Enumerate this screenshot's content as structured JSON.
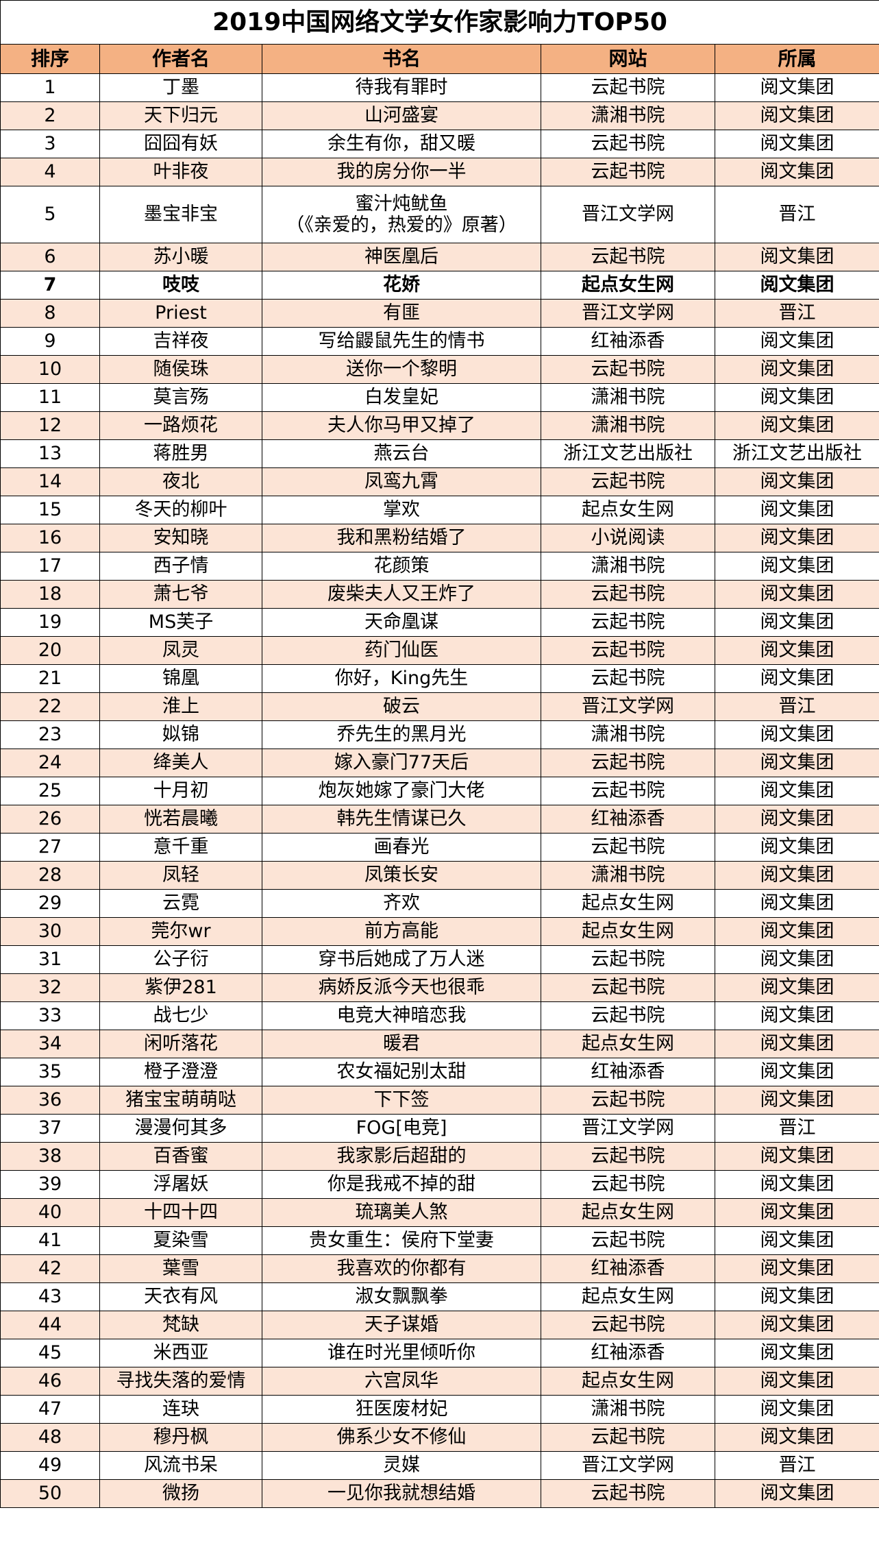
{
  "title": "2019中国网络文学女作家影响力TOP50",
  "columns": [
    "排序",
    "作者名",
    "书名",
    "网站",
    "所属"
  ],
  "colors": {
    "header_bg": "#F4B183",
    "alt_row_bg": "#FCE4D6"
  },
  "rows": [
    {
      "rank": "1",
      "author": "丁墨",
      "book": "待我有罪时",
      "site": "云起书院",
      "group": "阅文集团"
    },
    {
      "rank": "2",
      "author": "天下归元",
      "book": "山河盛宴",
      "site": "潇湘书院",
      "group": "阅文集团"
    },
    {
      "rank": "3",
      "author": "囧囧有妖",
      "book": "余生有你，甜又暖",
      "site": "云起书院",
      "group": "阅文集团"
    },
    {
      "rank": "4",
      "author": "叶非夜",
      "book": "我的房分你一半",
      "site": "云起书院",
      "group": "阅文集团"
    },
    {
      "rank": "5",
      "author": "墨宝非宝",
      "book": "蜜汁炖鱿鱼",
      "book_note": "（《亲爱的，热爱的》原著）",
      "site": "晋江文学网",
      "group": "晋江"
    },
    {
      "rank": "6",
      "author": "苏小暖",
      "book": "神医凰后",
      "site": "云起书院",
      "group": "阅文集团"
    },
    {
      "rank": "7",
      "author": "吱吱",
      "book": "花娇",
      "site": "起点女生网",
      "group": "阅文集团",
      "bold": true
    },
    {
      "rank": "8",
      "author": "Priest",
      "book": "有匪",
      "site": "晋江文学网",
      "group": "晋江"
    },
    {
      "rank": "9",
      "author": "吉祥夜",
      "book": "写给鼹鼠先生的情书",
      "site": "红袖添香",
      "group": "阅文集团"
    },
    {
      "rank": "10",
      "author": "随侯珠",
      "book": "送你一个黎明",
      "site": "云起书院",
      "group": "阅文集团"
    },
    {
      "rank": "11",
      "author": "莫言殇",
      "book": "白发皇妃",
      "site": "潇湘书院",
      "group": "阅文集团"
    },
    {
      "rank": "12",
      "author": "一路烦花",
      "book": "夫人你马甲又掉了",
      "site": "潇湘书院",
      "group": "阅文集团"
    },
    {
      "rank": "13",
      "author": "蒋胜男",
      "book": "燕云台",
      "site": "浙江文艺出版社",
      "group": "浙江文艺出版社"
    },
    {
      "rank": "14",
      "author": "夜北",
      "book": "凤鸾九霄",
      "site": "云起书院",
      "group": "阅文集团"
    },
    {
      "rank": "15",
      "author": "冬天的柳叶",
      "book": "掌欢",
      "site": "起点女生网",
      "group": "阅文集团"
    },
    {
      "rank": "16",
      "author": "安知晓",
      "book": "我和黑粉结婚了",
      "site": "小说阅读",
      "group": "阅文集团"
    },
    {
      "rank": "17",
      "author": "西子情",
      "book": "花颜策",
      "site": "潇湘书院",
      "group": "阅文集团"
    },
    {
      "rank": "18",
      "author": "萧七爷",
      "book": "废柴夫人又王炸了",
      "site": "云起书院",
      "group": "阅文集团"
    },
    {
      "rank": "19",
      "author": "MS芙子",
      "book": "天命凰谋",
      "site": "云起书院",
      "group": "阅文集团"
    },
    {
      "rank": "20",
      "author": "凤灵",
      "book": "药门仙医",
      "site": "云起书院",
      "group": "阅文集团"
    },
    {
      "rank": "21",
      "author": "锦凰",
      "book": "你好，King先生",
      "site": "云起书院",
      "group": "阅文集团"
    },
    {
      "rank": "22",
      "author": "淮上",
      "book": "破云",
      "site": "晋江文学网",
      "group": "晋江"
    },
    {
      "rank": "23",
      "author": "姒锦",
      "book": "乔先生的黑月光",
      "site": "潇湘书院",
      "group": "阅文集团"
    },
    {
      "rank": "24",
      "author": "绛美人",
      "book": "嫁入豪门77天后",
      "site": "云起书院",
      "group": "阅文集团"
    },
    {
      "rank": "25",
      "author": "十月初",
      "book": "炮灰她嫁了豪门大佬",
      "site": "云起书院",
      "group": "阅文集团"
    },
    {
      "rank": "26",
      "author": "恍若晨曦",
      "book": "韩先生情谋已久",
      "site": "红袖添香",
      "group": "阅文集团"
    },
    {
      "rank": "27",
      "author": "意千重",
      "book": "画春光",
      "site": "云起书院",
      "group": "阅文集团"
    },
    {
      "rank": "28",
      "author": "凤轻",
      "book": "凤策长安",
      "site": "潇湘书院",
      "group": "阅文集团"
    },
    {
      "rank": "29",
      "author": "云霓",
      "book": "齐欢",
      "site": "起点女生网",
      "group": "阅文集团"
    },
    {
      "rank": "30",
      "author": "莞尔wr",
      "book": "前方高能",
      "site": "起点女生网",
      "group": "阅文集团"
    },
    {
      "rank": "31",
      "author": "公子衍",
      "book": "穿书后她成了万人迷",
      "site": "云起书院",
      "group": "阅文集团"
    },
    {
      "rank": "32",
      "author": "紫伊281",
      "book": "病娇反派今天也很乖",
      "site": "云起书院",
      "group": "阅文集团"
    },
    {
      "rank": "33",
      "author": "战七少",
      "book": "电竞大神暗恋我",
      "site": "云起书院",
      "group": "阅文集团"
    },
    {
      "rank": "34",
      "author": "闲听落花",
      "book": "暖君",
      "site": "起点女生网",
      "group": "阅文集团"
    },
    {
      "rank": "35",
      "author": "橙子澄澄",
      "book": "农女福妃别太甜",
      "site": "红袖添香",
      "group": "阅文集团"
    },
    {
      "rank": "36",
      "author": "猪宝宝萌萌哒",
      "book": "下下签",
      "site": "云起书院",
      "group": "阅文集团"
    },
    {
      "rank": "37",
      "author": "漫漫何其多",
      "book": "FOG[电竞]",
      "site": "晋江文学网",
      "group": "晋江"
    },
    {
      "rank": "38",
      "author": "百香蜜",
      "book": "我家影后超甜的",
      "site": "云起书院",
      "group": "阅文集团"
    },
    {
      "rank": "39",
      "author": "浮屠妖",
      "book": "你是我戒不掉的甜",
      "site": "云起书院",
      "group": "阅文集团"
    },
    {
      "rank": "40",
      "author": "十四十四",
      "book": "琉璃美人煞",
      "site": "起点女生网",
      "group": "阅文集团"
    },
    {
      "rank": "41",
      "author": "夏染雪",
      "book": "贵女重生：侯府下堂妻",
      "site": "云起书院",
      "group": "阅文集团"
    },
    {
      "rank": "42",
      "author": "葉雪",
      "book": "我喜欢的你都有",
      "site": "红袖添香",
      "group": "阅文集团"
    },
    {
      "rank": "43",
      "author": "天衣有风",
      "book": "淑女飘飘拳",
      "site": "起点女生网",
      "group": "阅文集团"
    },
    {
      "rank": "44",
      "author": "梵缺",
      "book": "天子谋婚",
      "site": "云起书院",
      "group": "阅文集团"
    },
    {
      "rank": "45",
      "author": "米西亚",
      "book": "谁在时光里倾听你",
      "site": "红袖添香",
      "group": "阅文集团"
    },
    {
      "rank": "46",
      "author": "寻找失落的爱情",
      "book": "六宫凤华",
      "site": "起点女生网",
      "group": "阅文集团"
    },
    {
      "rank": "47",
      "author": "连玦",
      "book": "狂医废材妃",
      "site": "潇湘书院",
      "group": "阅文集团"
    },
    {
      "rank": "48",
      "author": "穆丹枫",
      "book": "佛系少女不修仙",
      "site": "云起书院",
      "group": "阅文集团"
    },
    {
      "rank": "49",
      "author": "风流书呆",
      "book": "灵媒",
      "site": "晋江文学网",
      "group": "晋江"
    },
    {
      "rank": "50",
      "author": "微扬",
      "book": "一见你我就想结婚",
      "site": "云起书院",
      "group": "阅文集团"
    }
  ]
}
